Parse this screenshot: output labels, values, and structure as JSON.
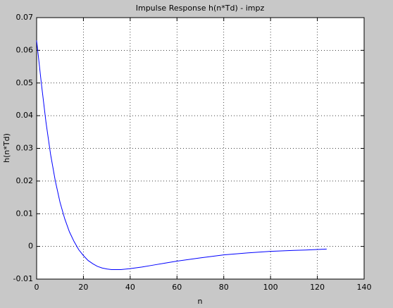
{
  "chart_data": {
    "type": "line",
    "title": "Impulse Response h(n*Td) - impz",
    "x_label": "n",
    "y_label": "h(n*Td)",
    "x": [
      0,
      2,
      4,
      6,
      8,
      10,
      12,
      14,
      16,
      18,
      20,
      22,
      24,
      26,
      28,
      30,
      32,
      34,
      36,
      40,
      45,
      50,
      55,
      60,
      70,
      80,
      90,
      100,
      110,
      115,
      124
    ],
    "series": [
      {
        "name": "h",
        "color": "#0000ff",
        "values": [
          0.063,
          0.05,
          0.038,
          0.028,
          0.02,
          0.0135,
          0.0085,
          0.0045,
          0.0015,
          -0.001,
          -0.0028,
          -0.0043,
          -0.0053,
          -0.0061,
          -0.0066,
          -0.0069,
          -0.0071,
          -0.0071,
          -0.0071,
          -0.0068,
          -0.0063,
          -0.0057,
          -0.0051,
          -0.0045,
          -0.0035,
          -0.0026,
          -0.002,
          -0.0015,
          -0.0012,
          -0.0011,
          -0.0008
        ]
      }
    ],
    "xlim": [
      0,
      140
    ],
    "xticks": [
      0,
      20,
      40,
      60,
      80,
      100,
      120,
      140
    ],
    "ylim": [
      -0.01,
      0.07
    ],
    "yticks": [
      -0.01,
      0,
      0.01,
      0.02,
      0.03,
      0.04,
      0.05,
      0.06,
      0.07
    ],
    "grid": true
  }
}
